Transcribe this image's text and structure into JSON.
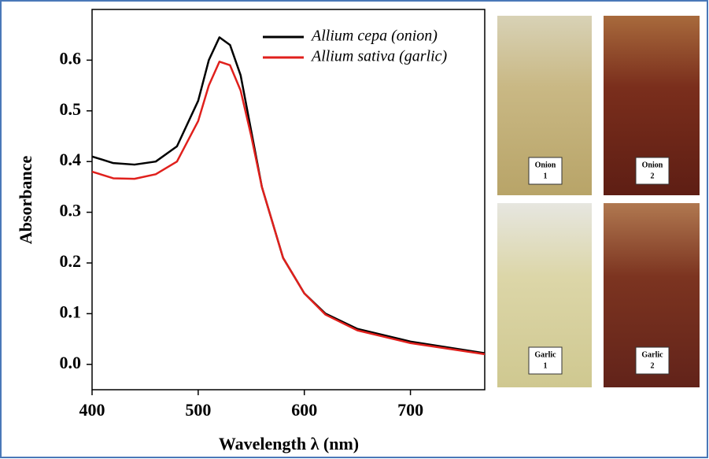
{
  "chart_data": {
    "type": "line",
    "xlabel": "Wavelength λ (nm)",
    "ylabel": "Absorbance",
    "x": [
      400,
      420,
      440,
      460,
      480,
      500,
      510,
      520,
      530,
      540,
      550,
      560,
      580,
      600,
      620,
      650,
      700,
      770
    ],
    "series": [
      {
        "name": "Allium cepa  (onion)",
        "color": "#000000",
        "values": [
          0.41,
          0.397,
          0.394,
          0.4,
          0.43,
          0.52,
          0.6,
          0.645,
          0.63,
          0.57,
          0.46,
          0.35,
          0.21,
          0.14,
          0.1,
          0.07,
          0.045,
          0.022
        ]
      },
      {
        "name": "Allium sativa (garlic)",
        "color": "#e0201c",
        "values": [
          0.38,
          0.367,
          0.366,
          0.375,
          0.4,
          0.48,
          0.55,
          0.597,
          0.59,
          0.54,
          0.45,
          0.35,
          0.21,
          0.14,
          0.098,
          0.067,
          0.042,
          0.02
        ]
      }
    ],
    "xlim": [
      400,
      770
    ],
    "xticks": [
      400,
      500,
      600,
      700
    ],
    "ylim": [
      -0.05,
      0.7
    ],
    "yticks": [
      {
        "value": 0,
        "label": "0.0"
      },
      0.1,
      0.2,
      0.3,
      0.4,
      0.5,
      0.6
    ],
    "legend": "upper right"
  },
  "photos": [
    [
      "Onion",
      "1"
    ],
    [
      "Onion",
      "2"
    ],
    [
      "Garlic",
      "1"
    ],
    [
      "Garlic",
      "2"
    ]
  ]
}
